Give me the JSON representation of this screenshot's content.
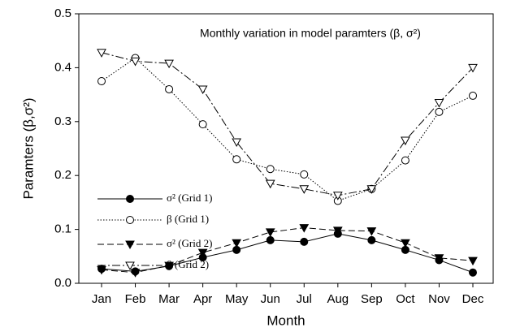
{
  "chart_data": {
    "type": "line",
    "title": "Monthly variation in model paramters (β, σ²)",
    "x_label": "Month",
    "y_label": "Paramters (β,σ²)",
    "categories": [
      "Jan",
      "Feb",
      "Mar",
      "Apr",
      "May",
      "Jun",
      "Jul",
      "Aug",
      "Sep",
      "Oct",
      "Nov",
      "Dec"
    ],
    "ylim": [
      0,
      0.5
    ],
    "yticks": [
      {
        "value": 0,
        "label": "0.0"
      },
      0.1,
      0.2,
      0.3,
      0.4,
      0.5
    ],
    "legend": "center-left",
    "series": [
      {
        "name": "σ² (Grid 1)",
        "color": "#000000",
        "dash": "solid",
        "marker": "circle-filled",
        "values": [
          0.027,
          0.022,
          0.032,
          0.048,
          0.062,
          0.08,
          0.077,
          0.092,
          0.08,
          0.062,
          0.043,
          0.02
        ]
      },
      {
        "name": "β (Grid 1)",
        "color": "#000000",
        "dash": "dotted",
        "marker": "circle-open",
        "values": [
          0.375,
          0.418,
          0.36,
          0.295,
          0.23,
          0.212,
          0.202,
          0.153,
          0.175,
          0.228,
          0.318,
          0.348
        ]
      },
      {
        "name": "σ² (Grid 2)",
        "color": "#000000",
        "dash": "dashed",
        "marker": "triangle-down-filled",
        "values": [
          0.025,
          0.02,
          0.033,
          0.057,
          0.075,
          0.095,
          0.103,
          0.098,
          0.097,
          0.075,
          0.047,
          0.042
        ]
      },
      {
        "name": "β (Grid 2)",
        "color": "#000000",
        "dash": "dashdot",
        "marker": "triangle-down-open",
        "values": [
          0.428,
          0.412,
          0.408,
          0.36,
          0.262,
          0.185,
          0.175,
          0.163,
          0.175,
          0.265,
          0.335,
          0.4
        ]
      }
    ]
  }
}
